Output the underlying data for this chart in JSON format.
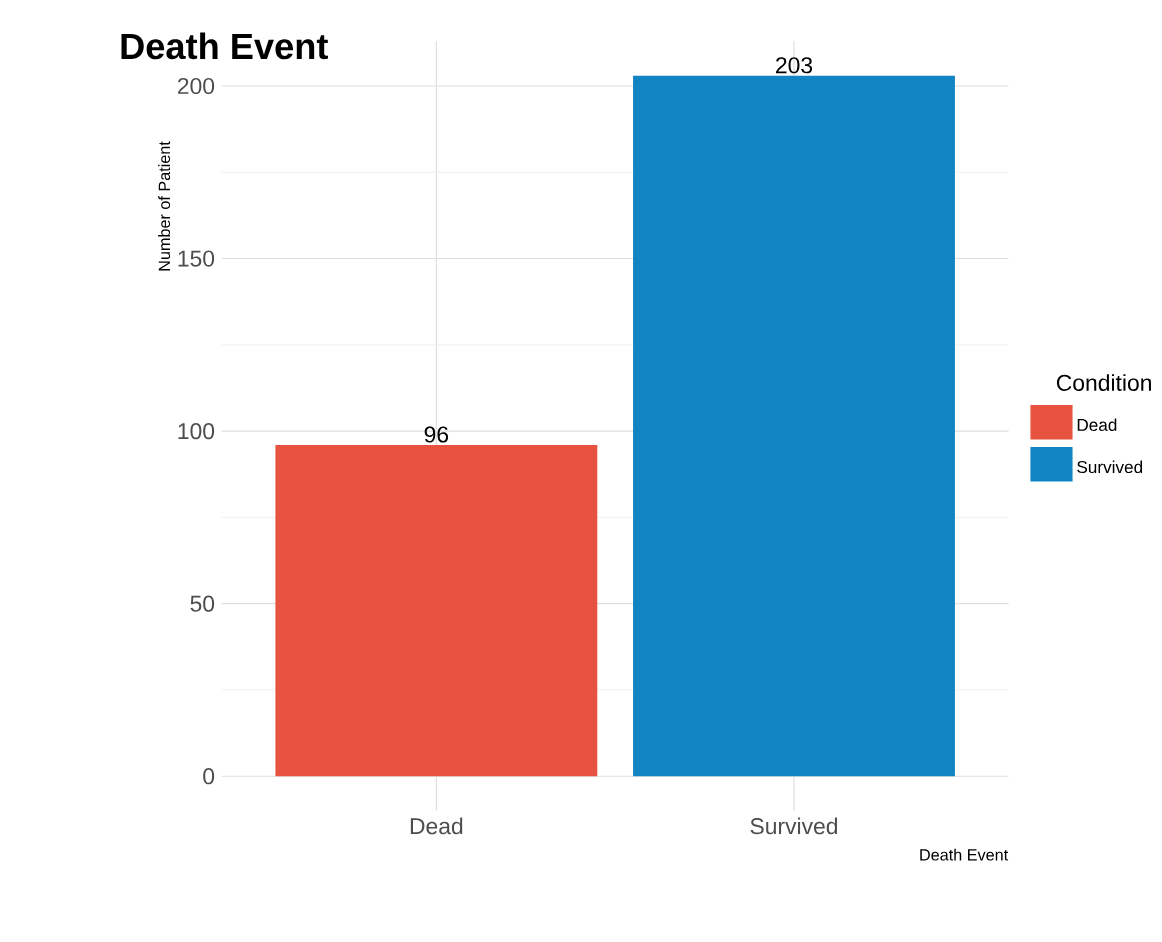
{
  "chart_data": {
    "type": "bar",
    "title": "Death Event",
    "xlabel": "Death Event",
    "ylabel": "Number of Patient",
    "legend_title": "Condition",
    "categories": [
      "Dead",
      "Survived"
    ],
    "series": [
      {
        "name": "Dead",
        "color": "#e8533f",
        "values": [
          96,
          null
        ]
      },
      {
        "name": "Survived",
        "color": "#1185c4",
        "values": [
          null,
          203
        ]
      }
    ],
    "ylim": [
      -10,
      213
    ],
    "yticks": [
      0,
      50,
      100,
      150,
      200
    ],
    "grid": true,
    "legend": "right",
    "data_labels": true
  }
}
